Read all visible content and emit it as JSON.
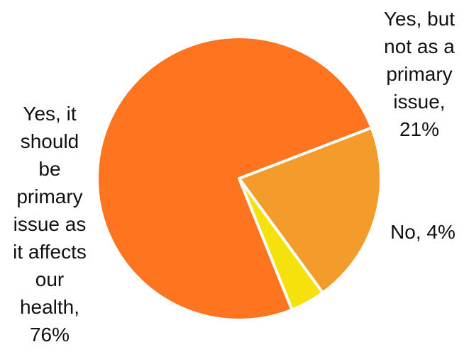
{
  "chart_data": {
    "type": "pie",
    "title": "",
    "slices": [
      {
        "label": "Yes, but not as a primary issue",
        "value": 21,
        "display_label": "Yes, but not as a primary issue, 21%",
        "display_lines": [
          "Yes, but",
          "not as a",
          "primary",
          "issue,",
          "21%"
        ],
        "color": "#F39C2B"
      },
      {
        "label": "No",
        "value": 4,
        "display_label": "No, 4%",
        "display_lines": [
          "No, 4%"
        ],
        "color": "#F5E10C"
      },
      {
        "label": "Yes, it should be primary issue as it affects our health",
        "value": 76,
        "display_label": "Yes, it should be primary issue as it affects our health, 76%",
        "display_lines": [
          "Yes, it",
          "should",
          "be",
          "primary",
          "issue as",
          "it affects",
          "our",
          "health,",
          "76%"
        ],
        "color": "#FF741F"
      }
    ],
    "start_angle_deg": 69,
    "direction": "clockwise",
    "slice_border_color": "#FFFFFF",
    "legend": "none",
    "data_labels": "outside"
  }
}
